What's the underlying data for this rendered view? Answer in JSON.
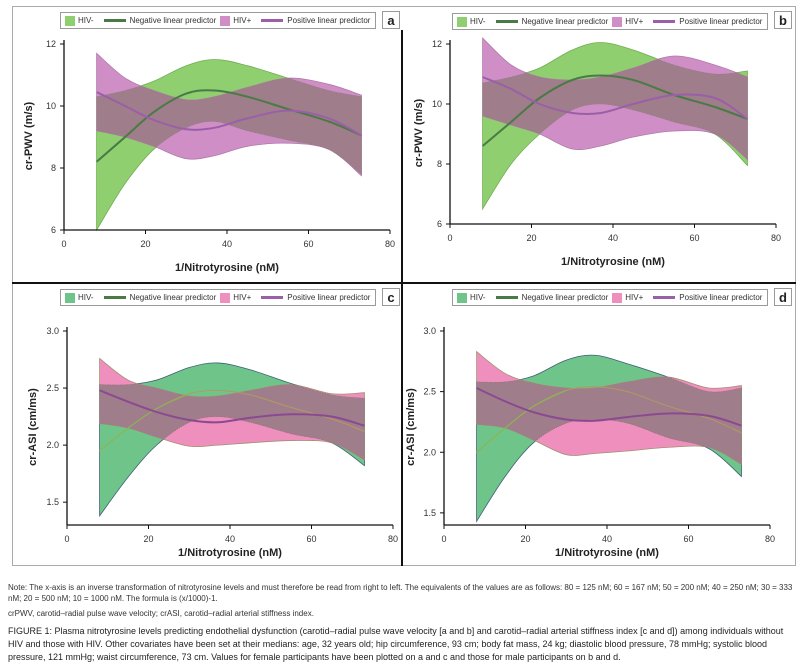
{
  "legend": {
    "hiv_neg": "HIV-",
    "neg_predictor": "Negative linear predictor",
    "hiv_pos": "HIV+",
    "pos_predictor": "Positive linear predictor"
  },
  "colors": {
    "hiv_neg_fill_pwv": "#8fcf6f",
    "neg_line_pwv": "#4a7a45",
    "hiv_pos_fill_pwv": "#cf8fc6",
    "pos_line_pwv": "#9a5fa8",
    "hiv_neg_fill_asi": "#6fc48a",
    "neg_line_asi": "#7fc04a",
    "hiv_pos_fill_asi": "#ee8fbe",
    "pos_line_asi": "#8a4a92",
    "overlap": "#a07d8a"
  },
  "notes": {
    "note": "Note: The x-axis is an inverse transformation of nitrotyrosine levels and must therefore be read from right to left. The equivalents of the values are as follows: 80 = 125 nM; 60 = 167 nM; 50 = 200 nM; 40 = 250 nM; 30 = 333 nM; 20 = 500 nM; 10 = 1000 nM. The formula is (x/1000)-1.",
    "abbreviations": "crPWV, carotid–radial pulse wave velocity; crASI, carotid–radial arterial stiffness index.",
    "caption": "FIGURE 1: Plasma nitrotyrosine levels predicting endothelial dysfunction (carotid–radial pulse wave velocity [a and b] and carotid–radial arterial stiffness index [c and d]) among individuals without HIV and those with HIV. Other covariates have been set at their medians: age, 32 years old; hip circumference, 93 cm; body fat mass, 24 kg; diastolic blood pressure, 78 mmHg; systolic blood pressure, 121 mmHg; waist circumference, 73 cm. Values for female participants have been plotted on a and c and those for male participants on b and d."
  },
  "chart_data": [
    {
      "panel": "a",
      "type": "area",
      "xlabel": "1/Nitrotyrosine (nM)",
      "ylabel": "cr-PWV (m/s)",
      "xlim": [
        0,
        80
      ],
      "ylim": [
        6,
        12
      ],
      "xticks": [
        "0",
        "20",
        "40",
        "60",
        "80"
      ],
      "yticks": [
        "6",
        "8",
        "10",
        "12"
      ],
      "x": [
        8,
        15,
        22,
        30,
        37,
        45,
        55,
        65,
        73
      ],
      "series": [
        {
          "name": "HIV- upper",
          "values": [
            10.3,
            10.5,
            10.8,
            11.3,
            11.5,
            11.3,
            10.9,
            10.5,
            10.3
          ]
        },
        {
          "name": "HIV- lower",
          "values": [
            6.0,
            7.5,
            8.6,
            9.3,
            9.5,
            9.2,
            8.9,
            8.6,
            7.8
          ]
        },
        {
          "name": "Negative linear predictor",
          "values": [
            8.2,
            9.0,
            9.8,
            10.4,
            10.5,
            10.3,
            9.9,
            9.5,
            9.05
          ]
        },
        {
          "name": "HIV+ upper",
          "values": [
            11.7,
            10.9,
            10.5,
            10.2,
            10.3,
            10.6,
            10.9,
            10.7,
            10.35
          ]
        },
        {
          "name": "HIV+ lower",
          "values": [
            9.2,
            9.0,
            8.7,
            8.3,
            8.4,
            8.7,
            8.8,
            8.6,
            7.75
          ]
        },
        {
          "name": "Positive linear predictor",
          "values": [
            10.45,
            10.0,
            9.55,
            9.25,
            9.3,
            9.6,
            9.85,
            9.6,
            9.05
          ]
        }
      ]
    },
    {
      "panel": "b",
      "type": "area",
      "xlabel": "1/Nitrotyrosine (nM)",
      "ylabel": "cr-PWV (m/s)",
      "xlim": [
        0,
        80
      ],
      "ylim": [
        6,
        12
      ],
      "xticks": [
        "0",
        "20",
        "40",
        "60",
        "80"
      ],
      "yticks": [
        "6",
        "8",
        "10",
        "12"
      ],
      "x": [
        8,
        15,
        22,
        30,
        37,
        45,
        55,
        65,
        73
      ],
      "series": [
        {
          "name": "HIV- upper",
          "values": [
            10.7,
            10.9,
            11.2,
            11.8,
            12.05,
            11.8,
            11.3,
            11.0,
            11.1
          ]
        },
        {
          "name": "HIV- lower",
          "values": [
            6.5,
            8.0,
            9.0,
            9.8,
            10.0,
            9.8,
            9.4,
            9.0,
            7.95
          ]
        },
        {
          "name": "Negative linear predictor",
          "values": [
            8.6,
            9.4,
            10.2,
            10.8,
            10.95,
            10.8,
            10.3,
            9.9,
            9.5
          ]
        },
        {
          "name": "HIV+ upper",
          "values": [
            12.2,
            11.3,
            10.9,
            10.8,
            10.9,
            11.2,
            11.6,
            11.3,
            10.9
          ]
        },
        {
          "name": "HIV+ lower",
          "values": [
            9.6,
            9.3,
            9.0,
            8.5,
            8.6,
            8.9,
            9.1,
            9.0,
            8.15
          ]
        },
        {
          "name": "Positive linear predictor",
          "values": [
            10.9,
            10.5,
            10.0,
            9.7,
            9.7,
            10.0,
            10.3,
            10.2,
            9.5
          ]
        }
      ]
    },
    {
      "panel": "c",
      "type": "area",
      "xlabel": "1/Nitrotyrosine (nM)",
      "ylabel": "cr-ASI (cm/ms)",
      "xlim": [
        0,
        80
      ],
      "ylim": [
        1.3,
        3.0
      ],
      "xticks": [
        "0",
        "20",
        "40",
        "60",
        "80"
      ],
      "yticks": [
        "1.5",
        "2.0",
        "2.5",
        "3.0"
      ],
      "x": [
        8,
        15,
        22,
        30,
        37,
        45,
        55,
        65,
        73
      ],
      "series": [
        {
          "name": "HIV- upper",
          "values": [
            2.53,
            2.53,
            2.57,
            2.68,
            2.72,
            2.66,
            2.54,
            2.44,
            2.41
          ]
        },
        {
          "name": "HIV- lower",
          "values": [
            1.38,
            1.72,
            2.0,
            2.2,
            2.25,
            2.2,
            2.1,
            2.02,
            1.82
          ]
        },
        {
          "name": "Negative linear predictor",
          "values": [
            1.95,
            2.15,
            2.32,
            2.45,
            2.48,
            2.44,
            2.33,
            2.23,
            2.12
          ]
        },
        {
          "name": "HIV+ upper",
          "values": [
            2.76,
            2.57,
            2.5,
            2.43,
            2.43,
            2.48,
            2.53,
            2.45,
            2.46
          ]
        },
        {
          "name": "HIV+ lower",
          "values": [
            2.19,
            2.15,
            2.07,
            1.99,
            2.0,
            2.02,
            2.04,
            2.02,
            1.87
          ]
        },
        {
          "name": "Positive linear predictor",
          "values": [
            2.48,
            2.38,
            2.29,
            2.22,
            2.2,
            2.24,
            2.27,
            2.25,
            2.17
          ]
        }
      ]
    },
    {
      "panel": "d",
      "type": "area",
      "xlabel": "1/Nitrotyrosine (nM)",
      "ylabel": "cr-ASI (cm/ms)",
      "xlim": [
        0,
        80
      ],
      "ylim": [
        1.4,
        3.0
      ],
      "xticks": [
        "0",
        "20",
        "40",
        "60",
        "80"
      ],
      "yticks": [
        "1.5",
        "2.0",
        "2.5",
        "3.0"
      ],
      "x": [
        8,
        15,
        22,
        30,
        37,
        45,
        55,
        65,
        73
      ],
      "series": [
        {
          "name": "HIV- upper",
          "values": [
            2.58,
            2.58,
            2.63,
            2.76,
            2.8,
            2.73,
            2.62,
            2.5,
            2.53
          ]
        },
        {
          "name": "HIV- lower",
          "values": [
            1.43,
            1.8,
            2.08,
            2.24,
            2.27,
            2.24,
            2.12,
            2.03,
            1.8
          ]
        },
        {
          "name": "Negative linear predictor",
          "values": [
            2.0,
            2.2,
            2.38,
            2.51,
            2.54,
            2.5,
            2.38,
            2.28,
            2.16
          ]
        },
        {
          "name": "HIV+ upper",
          "values": [
            2.83,
            2.65,
            2.57,
            2.53,
            2.53,
            2.58,
            2.62,
            2.53,
            2.55
          ]
        },
        {
          "name": "HIV+ lower",
          "values": [
            2.23,
            2.2,
            2.1,
            1.98,
            1.99,
            2.01,
            2.04,
            2.04,
            1.9
          ]
        },
        {
          "name": "Positive linear predictor",
          "values": [
            2.53,
            2.42,
            2.33,
            2.27,
            2.26,
            2.29,
            2.32,
            2.3,
            2.22
          ]
        }
      ]
    }
  ]
}
